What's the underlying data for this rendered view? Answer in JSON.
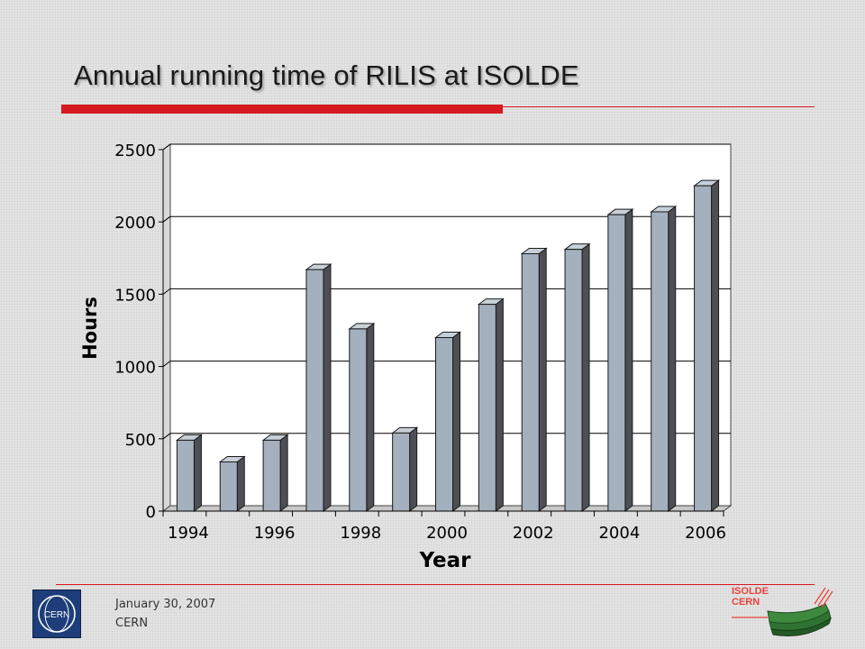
{
  "slide": {
    "title": "Annual running time of RILIS at ISOLDE",
    "footer_date": "January 30, 2007",
    "footer_org": "CERN",
    "accent_color": "#d71920"
  },
  "logos": {
    "cern": "CERN",
    "isolde_line1": "ISOLDE",
    "isolde_line2": "CERN"
  },
  "chart_data": {
    "type": "bar",
    "title": "",
    "xlabel": "Year",
    "ylabel": "Hours",
    "categories": [
      "1994",
      "1995",
      "1996",
      "1997",
      "1998",
      "1999",
      "2000",
      "2001",
      "2002",
      "2003",
      "2004",
      "2005",
      "2006"
    ],
    "values": [
      490,
      340,
      490,
      1670,
      1260,
      540,
      1200,
      1430,
      1780,
      1810,
      2050,
      2070,
      2250
    ],
    "x_tick_labels": [
      "1994",
      "1996",
      "1998",
      "2000",
      "2002",
      "2004",
      "2006"
    ],
    "y_ticks": [
      0,
      500,
      1000,
      1500,
      2000,
      2500
    ],
    "ylim": [
      0,
      2500
    ],
    "grid": true,
    "bar_color": "#a4b0be",
    "legend": "none"
  }
}
